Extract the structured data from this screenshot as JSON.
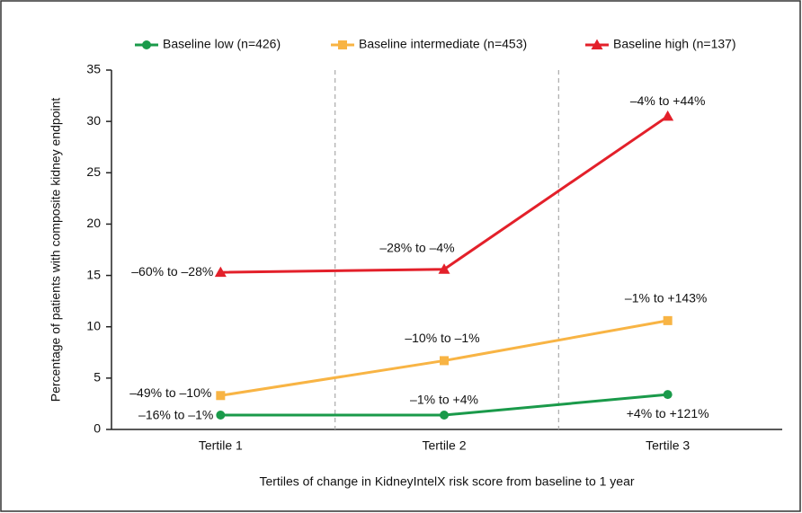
{
  "chart_data": {
    "type": "line",
    "y_label": "Percentage of patients with composite kidney endpoint",
    "x_label": "Tertiles of change in KidneyIntelX risk score from baseline to 1 year",
    "categories": [
      "Tertile 1",
      "Tertile 2",
      "Tertile 3"
    ],
    "series": [
      {
        "name": "Baseline low (n=426)",
        "color": "#1a9a4a",
        "marker": "circle",
        "values": [
          1.4,
          1.4,
          3.4
        ],
        "annotations": [
          "–16% to –1%",
          "–1% to +4%",
          "+4% to +121%"
        ]
      },
      {
        "name": "Baseline intermediate (n=453)",
        "color": "#f8b444",
        "marker": "square",
        "values": [
          3.3,
          6.7,
          10.6
        ],
        "annotations": [
          "–49% to –10%",
          "–10% to –1%",
          "–1% to +143%"
        ]
      },
      {
        "name": "Baseline high (n=137)",
        "color": "#e3202a",
        "marker": "triangle",
        "values": [
          15.3,
          15.6,
          30.5
        ],
        "annotations": [
          "–60% to –28%",
          "–28% to –4%",
          "–4% to +44%"
        ]
      }
    ],
    "ylim": [
      0,
      35
    ],
    "yticks": [
      0,
      5,
      10,
      15,
      20,
      25,
      30,
      35
    ],
    "legend": "top",
    "category_separators": true
  }
}
